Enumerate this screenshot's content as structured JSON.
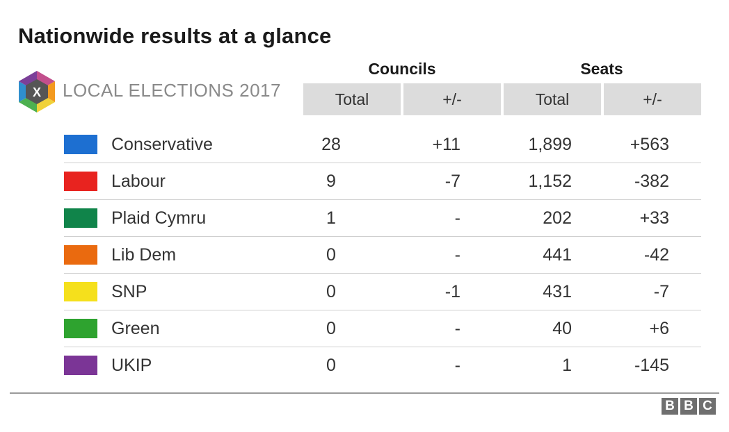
{
  "title": "Nationwide results at a glance",
  "logo": {
    "mark": "X",
    "text": "LOCAL ELECTIONS 2017"
  },
  "groups": {
    "councils": "Councils",
    "seats": "Seats"
  },
  "columns": {
    "councils_total": "Total",
    "councils_change": "+/-",
    "seats_total": "Total",
    "seats_change": "+/-"
  },
  "rows": [
    {
      "party": "Conservative",
      "color": "#1d6fd1",
      "councils_total": "28",
      "councils_change": "+11",
      "seats_total": "1,899",
      "seats_change": "+563"
    },
    {
      "party": "Labour",
      "color": "#e8231f",
      "councils_total": "9",
      "councils_change": "-7",
      "seats_total": "1,152",
      "seats_change": "-382"
    },
    {
      "party": "Plaid Cymru",
      "color": "#10844a",
      "councils_total": "1",
      "councils_change": "-",
      "seats_total": "202",
      "seats_change": "+33"
    },
    {
      "party": "Lib Dem",
      "color": "#ea6a0f",
      "councils_total": "0",
      "councils_change": "-",
      "seats_total": "441",
      "seats_change": "-42"
    },
    {
      "party": "SNP",
      "color": "#f5e01c",
      "councils_total": "0",
      "councils_change": "-1",
      "seats_total": "431",
      "seats_change": "-7"
    },
    {
      "party": "Green",
      "color": "#2ea32f",
      "councils_total": "0",
      "councils_change": "-",
      "seats_total": "40",
      "seats_change": "+6"
    },
    {
      "party": "UKIP",
      "color": "#7b3596",
      "councils_total": "0",
      "councils_change": "-",
      "seats_total": "1",
      "seats_change": "-145"
    }
  ],
  "footer": {
    "brand_letters": [
      "B",
      "B",
      "C"
    ]
  }
}
